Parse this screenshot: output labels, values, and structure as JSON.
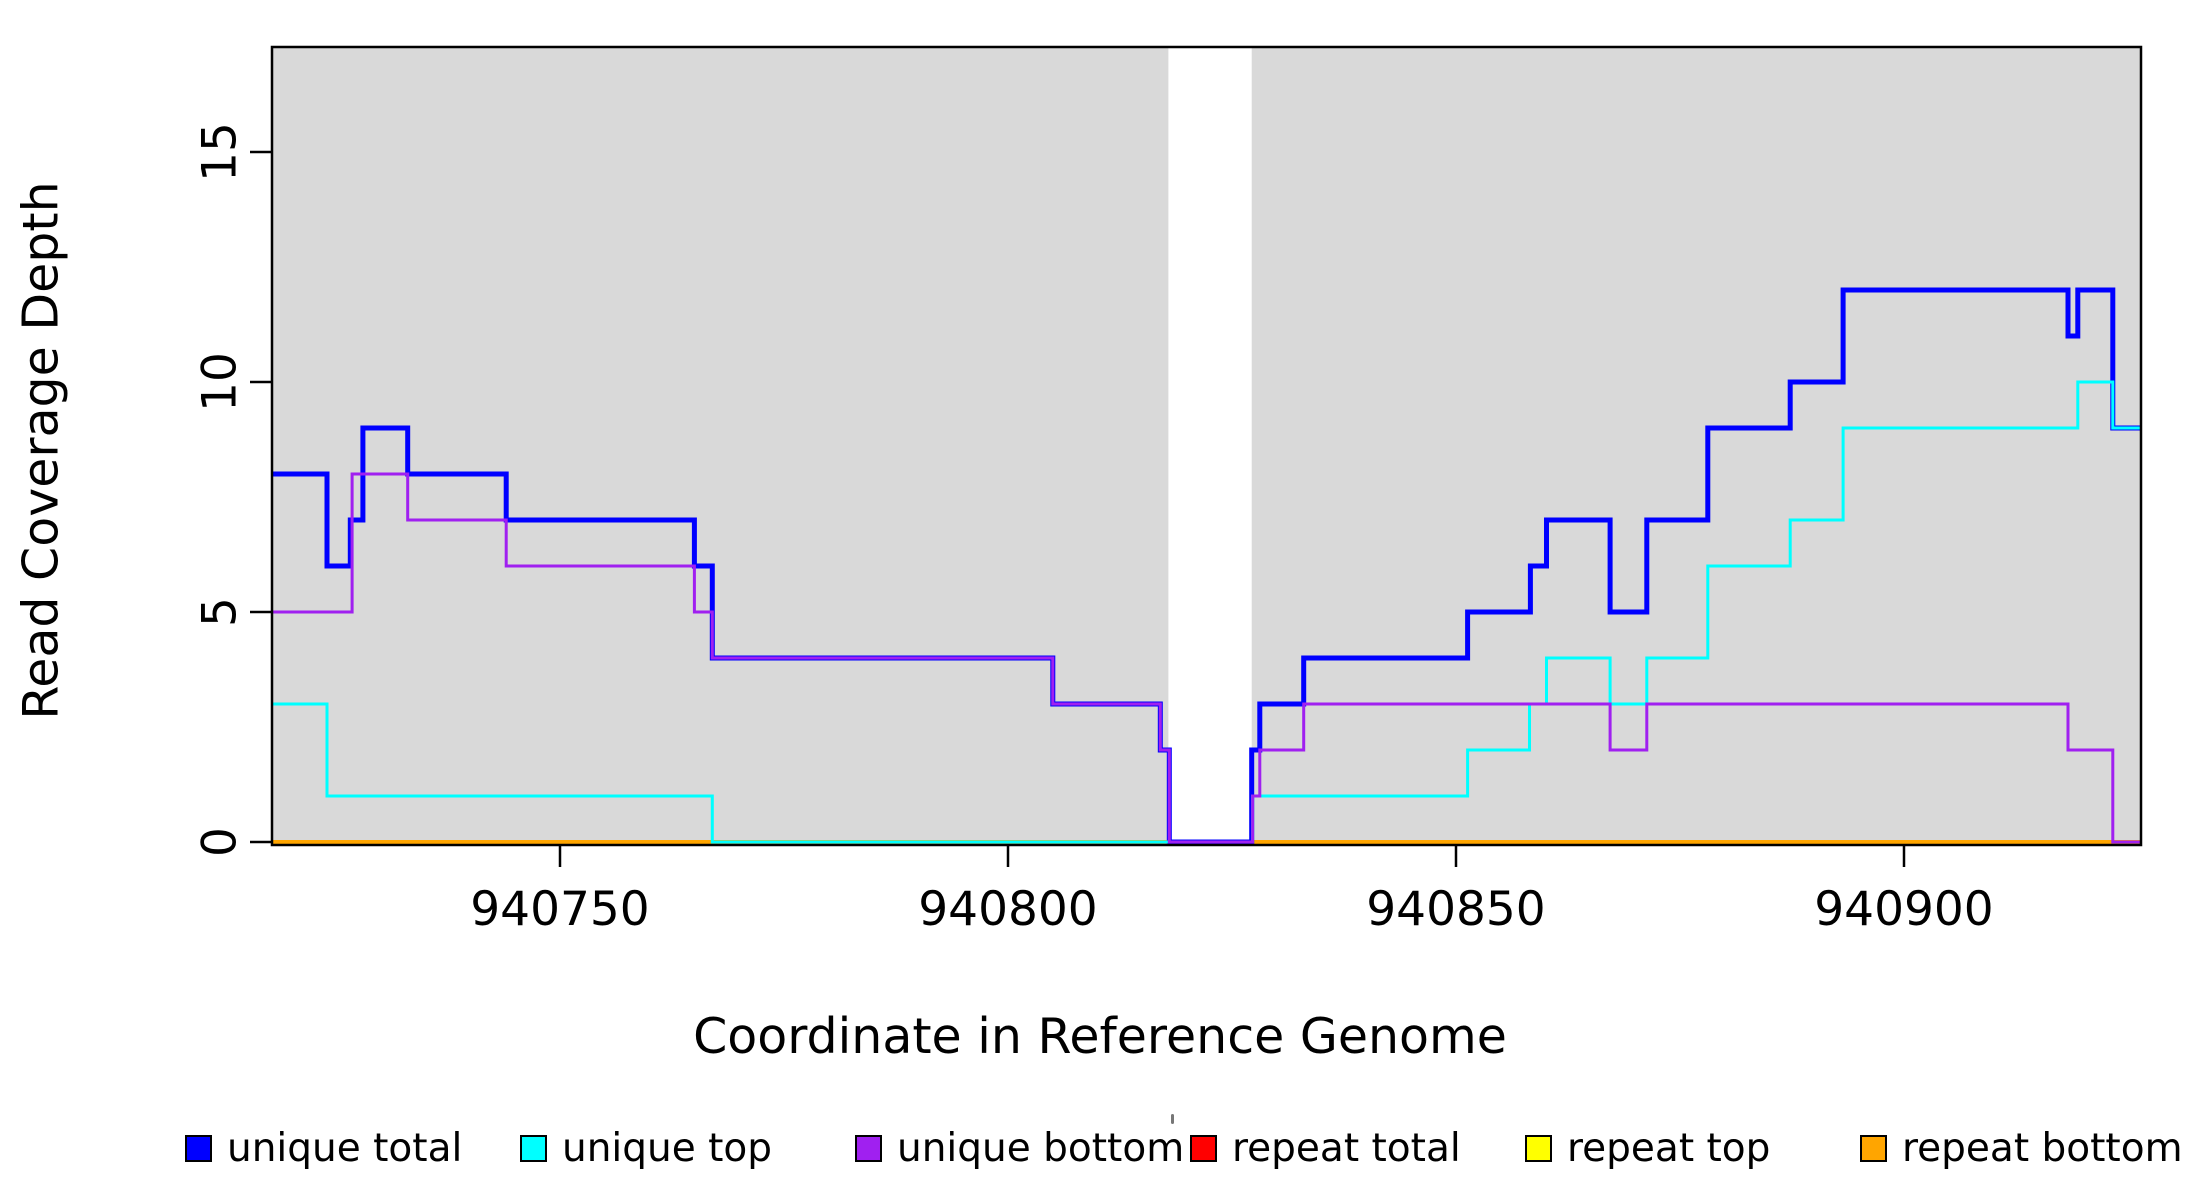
{
  "chart_data": {
    "type": "line",
    "subtype": "step-coverage",
    "title": "",
    "xlabel": "Coordinate in Reference Genome",
    "ylabel": "Read Coverage Depth",
    "xlim": [
      940717.9,
      940926.5
    ],
    "ylim": [
      0,
      17.3
    ],
    "grid": false,
    "legend_position": "bottom",
    "colors": {
      "panel_background": "#d9d9d9",
      "gap_background": "#ffffff",
      "axis": "#000000",
      "unique_total": "#0000ff",
      "unique_top": "#00ffff",
      "unique_bottom": "#a020f0",
      "repeat_total": "#ff0000",
      "repeat_top": "#ffff00",
      "repeat_bottom": "#ffa500"
    },
    "background_gray_regions": [
      [
        940717.9,
        940817.9
      ],
      [
        940827.2,
        940926.5
      ]
    ],
    "masked_white_region": [
      940817.9,
      940827.2
    ],
    "x_axis": {
      "ticks": [
        {
          "coord": 940750,
          "label": "940750"
        },
        {
          "coord": 940800,
          "label": "940800"
        },
        {
          "coord": 940850,
          "label": "940850"
        },
        {
          "coord": 940900,
          "label": "940900"
        }
      ]
    },
    "y_axis": {
      "ticks": [
        {
          "value": 0,
          "label": "0"
        },
        {
          "value": 5,
          "label": "5"
        },
        {
          "value": 10,
          "label": "10"
        },
        {
          "value": 15,
          "label": "15"
        }
      ]
    },
    "series": [
      {
        "id": "repeat_total",
        "label": "repeat total",
        "color_key": "repeat_total",
        "stroke_width": 3,
        "breaks": [
          [
            940717.9,
            0
          ]
        ],
        "end": 940926.5
      },
      {
        "id": "repeat_top",
        "label": "repeat top",
        "color_key": "repeat_top",
        "stroke_width": 3,
        "breaks": [
          [
            940717.9,
            0
          ]
        ],
        "end": 940926.5
      },
      {
        "id": "repeat_bottom",
        "label": "repeat bottom",
        "color_key": "repeat_bottom",
        "stroke_width": 4,
        "breaks": [
          [
            940717.9,
            0
          ]
        ],
        "end": 940926.5
      },
      {
        "id": "unique_total",
        "label": "unique total",
        "color_key": "unique_total",
        "stroke_width": 5,
        "breaks": [
          [
            940717.9,
            8
          ],
          [
            940724,
            6
          ],
          [
            940726.6,
            7
          ],
          [
            940728,
            9
          ],
          [
            940733,
            8
          ],
          [
            940744,
            7
          ],
          [
            940765,
            6
          ],
          [
            940767,
            4
          ],
          [
            940805,
            3
          ],
          [
            940817,
            2
          ],
          [
            940818,
            0
          ],
          [
            940827.2,
            2
          ],
          [
            940828.1,
            3
          ],
          [
            940833,
            4
          ],
          [
            940851.3,
            5
          ],
          [
            940858.3,
            6
          ],
          [
            940860.1,
            7
          ],
          [
            940867.2,
            5
          ],
          [
            940871.3,
            7
          ],
          [
            940878.1,
            9
          ],
          [
            940887.3,
            10
          ],
          [
            940893.2,
            12
          ],
          [
            940918.3,
            11
          ],
          [
            940919.4,
            12
          ],
          [
            940923.3,
            9
          ]
        ],
        "end": 940926.5
      },
      {
        "id": "unique_top",
        "label": "unique top",
        "color_key": "unique_top",
        "stroke_width": 3,
        "breaks": [
          [
            940717.9,
            3
          ],
          [
            940724,
            1
          ],
          [
            940767,
            0
          ],
          [
            940827.3,
            1
          ],
          [
            940851.3,
            2
          ],
          [
            940858.2,
            3
          ],
          [
            940860.1,
            4
          ],
          [
            940867.2,
            3
          ],
          [
            940871.3,
            4
          ],
          [
            940878.1,
            6
          ],
          [
            940887.3,
            7
          ],
          [
            940893.2,
            9
          ],
          [
            940919.4,
            10
          ],
          [
            940923.3,
            9
          ]
        ],
        "end": 940926.5
      },
      {
        "id": "unique_bottom",
        "label": "unique bottom",
        "color_key": "unique_bottom",
        "stroke_width": 3,
        "breaks": [
          [
            940717.9,
            5
          ],
          [
            940726.8,
            8
          ],
          [
            940733,
            7
          ],
          [
            940744,
            6
          ],
          [
            940765,
            5
          ],
          [
            940767,
            4
          ],
          [
            940805,
            3
          ],
          [
            940817,
            2
          ],
          [
            940818,
            0
          ],
          [
            940827.3,
            1
          ],
          [
            940828.1,
            2
          ],
          [
            940833,
            3
          ],
          [
            940867.2,
            2
          ],
          [
            940871.3,
            3
          ],
          [
            940918.3,
            2
          ],
          [
            940923.3,
            0
          ]
        ],
        "end": 940926.5
      }
    ],
    "legend": {
      "items": [
        {
          "label": "unique total",
          "color_key": "unique_total"
        },
        {
          "label": "unique top",
          "color_key": "unique_top"
        },
        {
          "label": "unique bottom",
          "color_key": "unique_bottom"
        },
        {
          "label": "repeat total",
          "color_key": "repeat_total"
        },
        {
          "label": "repeat top",
          "color_key": "repeat_top"
        },
        {
          "label": "repeat bottom",
          "color_key": "repeat_bottom"
        }
      ]
    }
  }
}
